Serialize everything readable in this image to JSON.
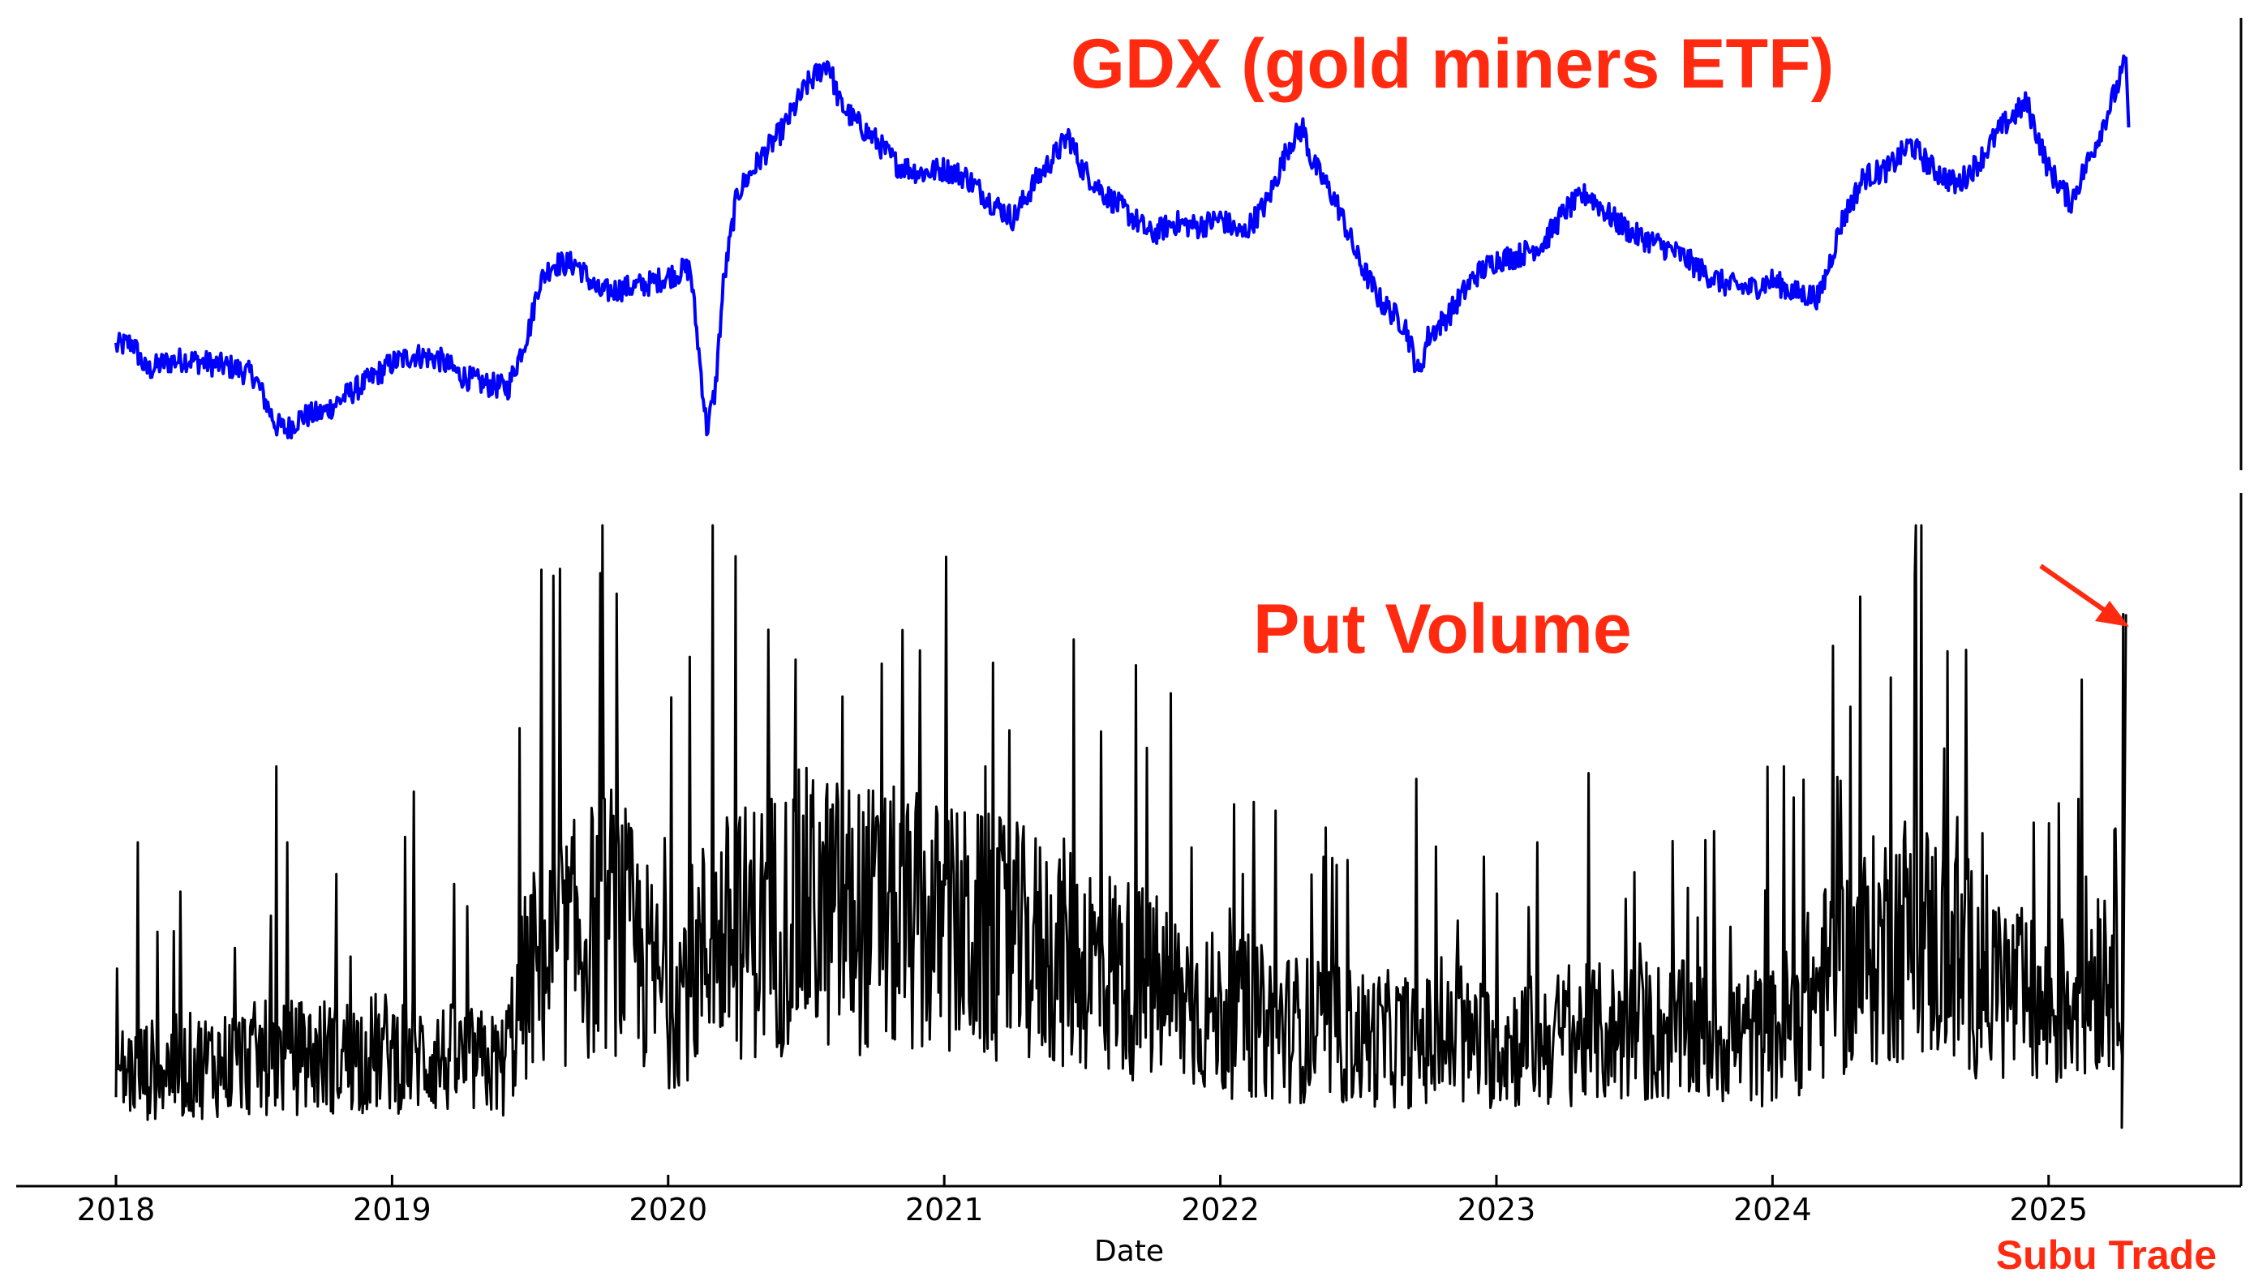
{
  "colors": {
    "gdx_line": "#0000ff",
    "put_volume_line": "#000000",
    "annotation": "#ff2a10",
    "axis": "#000000"
  },
  "chart_data": [
    {
      "type": "line",
      "title": "GDX (gold miners ETF)",
      "xlabel": "",
      "ylabel": "",
      "x_range": [
        2018,
        2025.62
      ],
      "y_range": [
        0,
        100
      ],
      "y_tick_labels": "hidden",
      "grid": false,
      "series": [
        {
          "name": "GDX (gold miners ETF)",
          "color": "#0000ff",
          "x": [
            2018.0,
            2018.06,
            2018.11,
            2018.17,
            2018.25,
            2018.33,
            2018.42,
            2018.5,
            2018.58,
            2018.62,
            2018.67,
            2018.75,
            2018.83,
            2018.92,
            2019.0,
            2019.08,
            2019.17,
            2019.25,
            2019.33,
            2019.42,
            2019.5,
            2019.53,
            2019.58,
            2019.67,
            2019.75,
            2019.83,
            2019.92,
            2020.0,
            2020.08,
            2020.14,
            2020.17,
            2020.2,
            2020.25,
            2020.33,
            2020.42,
            2020.5,
            2020.58,
            2020.62,
            2020.67,
            2020.75,
            2020.83,
            2020.92,
            2021.0,
            2021.08,
            2021.17,
            2021.25,
            2021.33,
            2021.42,
            2021.45,
            2021.5,
            2021.58,
            2021.67,
            2021.75,
            2021.83,
            2021.92,
            2022.0,
            2022.08,
            2022.17,
            2022.25,
            2022.3,
            2022.33,
            2022.42,
            2022.5,
            2022.58,
            2022.67,
            2022.72,
            2022.75,
            2022.83,
            2022.92,
            2023.0,
            2023.08,
            2023.17,
            2023.25,
            2023.33,
            2023.42,
            2023.5,
            2023.58,
            2023.67,
            2023.75,
            2023.83,
            2023.92,
            2024.0,
            2024.08,
            2024.17,
            2024.25,
            2024.33,
            2024.42,
            2024.5,
            2024.58,
            2024.67,
            2024.75,
            2024.83,
            2024.92,
            2025.0,
            2025.08,
            2025.17,
            2025.25,
            2025.28
          ],
          "y": [
            25,
            26,
            19,
            21,
            22,
            21,
            20,
            18,
            6,
            5,
            8,
            9,
            13,
            17,
            21,
            23,
            22,
            18,
            16,
            15,
            30,
            40,
            45,
            45,
            38,
            39,
            40,
            42,
            44,
            5,
            14,
            40,
            62,
            70,
            78,
            88,
            94,
            84,
            80,
            75,
            69,
            67,
            68,
            66,
            60,
            56,
            65,
            73,
            76,
            68,
            62,
            57,
            52,
            55,
            54,
            56,
            52,
            60,
            74,
            78,
            70,
            60,
            46,
            36,
            30,
            18,
            27,
            33,
            42,
            46,
            47,
            50,
            58,
            62,
            56,
            52,
            50,
            47,
            43,
            40,
            39,
            41,
            38,
            37,
            55,
            66,
            68,
            74,
            68,
            64,
            70,
            78,
            84,
            68,
            60,
            74,
            88,
            94
          ]
        }
      ]
    },
    {
      "type": "line",
      "title": "Put Volume",
      "xlabel": "Date",
      "ylabel": "",
      "x_range": [
        2018,
        2025.62
      ],
      "y_range": [
        0,
        100
      ],
      "y_tick_labels": "hidden",
      "x_ticks": [
        "2018",
        "2019",
        "2020",
        "2021",
        "2022",
        "2023",
        "2024",
        "2025"
      ],
      "grid": false,
      "annotation": "arrow pointing to latest spike",
      "series": [
        {
          "name": "Put Volume",
          "color": "#000000",
          "baseline": [
            [
              2018.0,
              12
            ],
            [
              2018.5,
              14
            ],
            [
              2019.0,
              15
            ],
            [
              2019.4,
              13
            ],
            [
              2019.5,
              26
            ],
            [
              2019.8,
              34
            ],
            [
              2020.0,
              22
            ],
            [
              2020.15,
              30
            ],
            [
              2020.5,
              35
            ],
            [
              2021.0,
              32
            ],
            [
              2021.5,
              28
            ],
            [
              2022.0,
              20
            ],
            [
              2022.5,
              17
            ],
            [
              2023.0,
              16
            ],
            [
              2023.5,
              18
            ],
            [
              2024.0,
              17
            ],
            [
              2024.2,
              25
            ],
            [
              2024.5,
              32
            ],
            [
              2024.75,
              26
            ],
            [
              2025.0,
              20
            ],
            [
              2025.25,
              30
            ]
          ],
          "spikes": [
            {
              "x": 2018.08,
              "y": 50
            },
            {
              "x": 2018.21,
              "y": 36
            },
            {
              "x": 2018.58,
              "y": 62
            },
            {
              "x": 2018.62,
              "y": 50
            },
            {
              "x": 2018.8,
              "y": 45
            },
            {
              "x": 2019.08,
              "y": 58
            },
            {
              "x": 2019.46,
              "y": 68
            },
            {
              "x": 2019.54,
              "y": 93
            },
            {
              "x": 2020.16,
              "y": 100
            },
            {
              "x": 2020.63,
              "y": 73
            },
            {
              "x": 2021.15,
              "y": 62
            },
            {
              "x": 2021.47,
              "y": 82
            },
            {
              "x": 2022.08,
              "y": 45
            },
            {
              "x": 2022.2,
              "y": 55
            },
            {
              "x": 2022.71,
              "y": 60
            },
            {
              "x": 2023.15,
              "y": 50
            },
            {
              "x": 2024.04,
              "y": 62
            },
            {
              "x": 2024.22,
              "y": 81
            },
            {
              "x": 2024.43,
              "y": 76
            },
            {
              "x": 2024.67,
              "y": 54
            },
            {
              "x": 2025.0,
              "y": 53
            },
            {
              "x": 2025.28,
              "y": 86
            }
          ]
        }
      ]
    }
  ],
  "watermark": "Subu Trade"
}
